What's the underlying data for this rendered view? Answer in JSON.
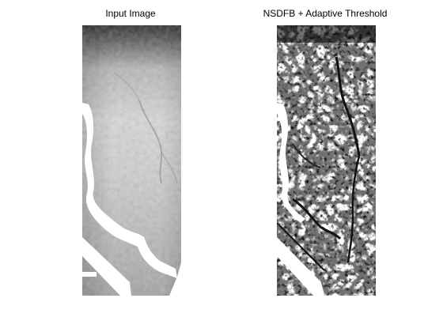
{
  "figure": {
    "panels": [
      {
        "title": "Input Image"
      },
      {
        "title": "NSDFB + Adaptive Threshold"
      }
    ]
  }
}
